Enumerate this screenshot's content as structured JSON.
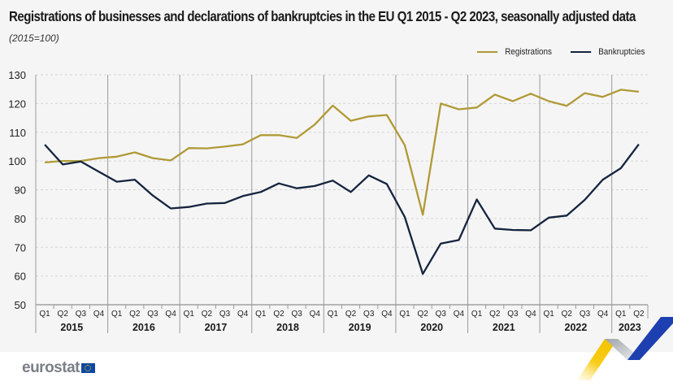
{
  "chart_data": {
    "type": "line",
    "title": "Registrations of businesses and declarations of bankruptcies in the EU Q1 2015 - Q2 2023, seasonally adjusted data",
    "subtitle": "(2015=100)",
    "xlabel": "",
    "ylabel": "",
    "ylim": [
      50,
      130
    ],
    "yticks": [
      50,
      60,
      70,
      80,
      90,
      100,
      110,
      120,
      130
    ],
    "grid": true,
    "legend_position": "top-right",
    "years": [
      "2015",
      "2016",
      "2017",
      "2018",
      "2019",
      "2020",
      "2021",
      "2022",
      "2023"
    ],
    "x": [
      "Q1 2015",
      "Q2 2015",
      "Q3 2015",
      "Q4 2015",
      "Q1 2016",
      "Q2 2016",
      "Q3 2016",
      "Q4 2016",
      "Q1 2017",
      "Q2 2017",
      "Q3 2017",
      "Q4 2017",
      "Q1 2018",
      "Q2 2018",
      "Q3 2018",
      "Q4 2018",
      "Q1 2019",
      "Q2 2019",
      "Q3 2019",
      "Q4 2019",
      "Q1 2020",
      "Q2 2020",
      "Q3 2020",
      "Q4 2020",
      "Q1 2021",
      "Q2 2021",
      "Q3 2021",
      "Q4 2021",
      "Q1 2022",
      "Q2 2022",
      "Q3 2022",
      "Q4 2022",
      "Q1 2023",
      "Q2 2023"
    ],
    "quarter_labels": [
      "Q1",
      "Q2",
      "Q3",
      "Q4"
    ],
    "series": [
      {
        "name": "Registrations",
        "color": "#b09a37",
        "values": [
          99.5,
          100.0,
          100.0,
          101.0,
          101.5,
          103.0,
          101.0,
          100.2,
          104.5,
          104.4,
          105.0,
          105.8,
          109.0,
          109.0,
          108.0,
          112.7,
          119.3,
          114.0,
          115.5,
          116.0,
          105.5,
          81.3,
          120.0,
          118.0,
          118.6,
          123.1,
          120.8,
          123.4,
          120.8,
          119.2,
          123.6,
          122.3,
          124.8,
          124.1
        ]
      },
      {
        "name": "Bankruptcies",
        "color": "#15243f",
        "values": [
          105.7,
          98.8,
          99.8,
          96.3,
          92.8,
          93.5,
          88.0,
          83.5,
          84.0,
          85.2,
          85.4,
          87.8,
          89.2,
          92.2,
          90.5,
          91.3,
          93.2,
          89.2,
          95.0,
          92.0,
          80.5,
          60.7,
          71.3,
          72.5,
          86.6,
          76.5,
          76.0,
          75.9,
          80.3,
          81.0,
          86.5,
          93.5,
          97.5,
          105.8
        ]
      }
    ]
  },
  "footer": {
    "logo_text": "eurostat",
    "flag_icon": "eu-flag-icon"
  }
}
